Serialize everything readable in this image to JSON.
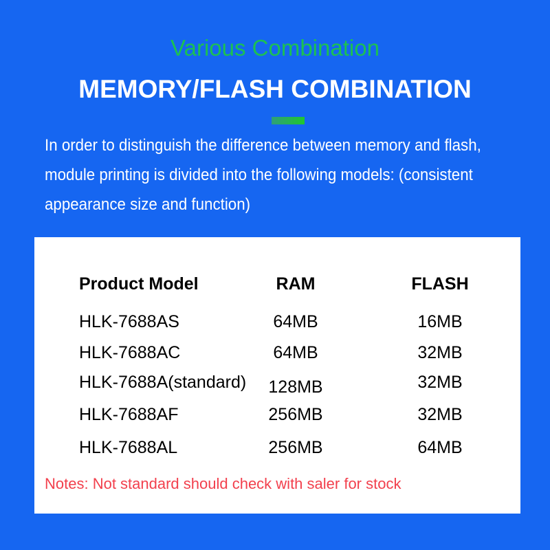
{
  "page": {
    "colors": {
      "background": "#1666f1",
      "accent-green": "#1cc152",
      "title-white": "#ffffff",
      "card-white": "#ffffff",
      "table-text": "#000000",
      "note-red": "#f2404d",
      "bar-start": "#2f9f7a",
      "bar-end": "#1fc72f"
    }
  },
  "header": {
    "subtitle": "Various Combination",
    "title": "MEMORY/FLASH COMBINATION"
  },
  "intro": {
    "lines": [
      "In order to distinguish the difference between memory and flash,",
      "module printing is divided into the following models: (consistent",
      "appearance size and function)"
    ]
  },
  "table": {
    "headers": [
      "Product Model",
      "RAM",
      "FLASH"
    ],
    "rows": [
      {
        "model": "HLK-7688AS",
        "ram": "64MB",
        "flash": "16MB"
      },
      {
        "model": "HLK-7688AC",
        "ram": "64MB",
        "flash": "32MB"
      },
      {
        "model": "HLK-7688A(standard)",
        "ram": "128MB",
        "flash": "32MB"
      },
      {
        "model": "HLK-7688AF",
        "ram": "256MB",
        "flash": "32MB"
      },
      {
        "model": "HLK-7688AL",
        "ram": "256MB",
        "flash": "64MB"
      }
    ],
    "note": "Notes: Not standard should check with saler for stock"
  }
}
